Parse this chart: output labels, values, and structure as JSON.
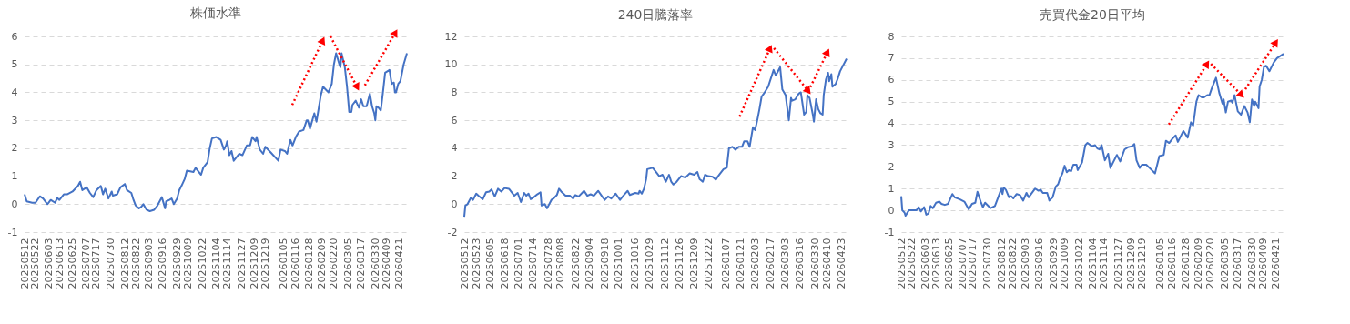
{
  "chart_data": [
    {
      "type": "line",
      "title": "株価水準",
      "grid": "y",
      "xlim": [
        "2025-05-12",
        "2026-04-28"
      ],
      "ylim": [
        -1,
        6
      ],
      "yticks": [
        -1,
        0,
        1,
        2,
        3,
        4,
        5,
        6
      ],
      "xticks": [
        {
          "value": "2025-05-12",
          "label": "20250512"
        },
        {
          "value": "2025-05-22",
          "label": "20250522"
        },
        {
          "value": "2025-06-03",
          "label": "20250603"
        },
        {
          "value": "2025-06-13",
          "label": "20250613"
        },
        {
          "value": "2025-06-25",
          "label": "20250625"
        },
        {
          "value": "2025-07-07",
          "label": "20250707"
        },
        {
          "value": "2025-07-17",
          "label": "20250717"
        },
        {
          "value": "2025-07-30",
          "label": "20250730"
        },
        {
          "value": "2025-08-12",
          "label": "20250812"
        },
        {
          "value": "2025-08-22",
          "label": "20250822"
        },
        {
          "value": "2025-09-03",
          "label": "20250903"
        },
        {
          "value": "2025-09-16",
          "label": "20250916"
        },
        {
          "value": "2025-09-29",
          "label": "20250929"
        },
        {
          "value": "2025-10-09",
          "label": "20251009"
        },
        {
          "value": "2025-10-22",
          "label": "20251022"
        },
        {
          "value": "2025-11-04",
          "label": "20251104"
        },
        {
          "value": "2025-11-14",
          "label": "20251114"
        },
        {
          "value": "2025-11-27",
          "label": "20251127"
        },
        {
          "value": "2025-12-09",
          "label": "20251209"
        },
        {
          "value": "2025-12-19",
          "label": "20251219"
        },
        {
          "value": "2026-01-05",
          "label": "20260105"
        },
        {
          "value": "2026-01-16",
          "label": "20260116"
        },
        {
          "value": "2026-01-28",
          "label": "20260128"
        },
        {
          "value": "2026-02-09",
          "label": "20260209"
        },
        {
          "value": "2026-02-20",
          "label": "20260220"
        },
        {
          "value": "2026-03-05",
          "label": "20260305"
        },
        {
          "value": "2026-03-17",
          "label": "20260317"
        },
        {
          "value": "2026-03-30",
          "label": "20260330"
        },
        {
          "value": "2026-04-09",
          "label": "20260409"
        },
        {
          "value": "2026-04-21",
          "label": "20260421"
        }
      ],
      "x": [
        "2025-05-12",
        "2025-05-14",
        "2025-05-19",
        "2025-05-22",
        "2025-05-26",
        "2025-05-29",
        "2025-06-02",
        "2025-06-05",
        "2025-06-09",
        "2025-06-11",
        "2025-06-13",
        "2025-06-17",
        "2025-06-20",
        "2025-06-25",
        "2025-06-30",
        "2025-07-02",
        "2025-07-04",
        "2025-07-08",
        "2025-07-11",
        "2025-07-14",
        "2025-07-17",
        "2025-07-21",
        "2025-07-23",
        "2025-07-25",
        "2025-07-28",
        "2025-07-31",
        "2025-08-01",
        "2025-08-05",
        "2025-08-08",
        "2025-08-12",
        "2025-08-14",
        "2025-08-18",
        "2025-08-20",
        "2025-08-22",
        "2025-08-25",
        "2025-08-27",
        "2025-08-29",
        "2025-09-01",
        "2025-09-04",
        "2025-09-08",
        "2025-09-11",
        "2025-09-15",
        "2025-09-18",
        "2025-09-19",
        "2025-09-22",
        "2025-09-24",
        "2025-09-26",
        "2025-09-29",
        "2025-10-01",
        "2025-10-03",
        "2025-10-06",
        "2025-10-08",
        "2025-10-14",
        "2025-10-16",
        "2025-10-21",
        "2025-10-23",
        "2025-10-27",
        "2025-10-29",
        "2025-10-31",
        "2025-11-04",
        "2025-11-08",
        "2025-11-11",
        "2025-11-13",
        "2025-11-14",
        "2025-11-16",
        "2025-11-18",
        "2025-11-20",
        "2025-11-25",
        "2025-11-28",
        "2025-12-02",
        "2025-12-05",
        "2025-12-07",
        "2025-12-10",
        "2025-12-11",
        "2025-12-14",
        "2025-12-17",
        "2025-12-19",
        "2025-12-24",
        "2025-12-31",
        "2026-01-02",
        "2026-01-06",
        "2026-01-08",
        "2026-01-11",
        "2026-01-13",
        "2026-01-16",
        "2026-01-19",
        "2026-01-23",
        "2026-01-26",
        "2026-01-27",
        "2026-01-29",
        "2026-02-02",
        "2026-02-04",
        "2026-02-08",
        "2026-02-10",
        "2026-02-15",
        "2026-02-18",
        "2026-02-20",
        "2026-02-22",
        "2026-02-25",
        "2026-02-26",
        "2026-02-27",
        "2026-03-02",
        "2026-03-04",
        "2026-03-06",
        "2026-03-08",
        "2026-03-09",
        "2026-03-12",
        "2026-03-15",
        "2026-03-17",
        "2026-03-19",
        "2026-03-22",
        "2026-03-25",
        "2026-03-27",
        "2026-03-29",
        "2026-03-30",
        "2026-03-31",
        "2026-04-02",
        "2026-04-04",
        "2026-04-06",
        "2026-04-08",
        "2026-04-12",
        "2026-04-14",
        "2026-04-16",
        "2026-04-17",
        "2026-04-18",
        "2026-04-20",
        "2026-04-22",
        "2026-04-25",
        "2026-04-28"
      ],
      "series": [
        {
          "color": "#4472c4",
          "values": [
            0.35,
            0.1,
            0.05,
            0.05,
            0.28,
            0.2,
            0.0,
            0.15,
            0.05,
            0.22,
            0.15,
            0.35,
            0.35,
            0.45,
            0.65,
            0.8,
            0.5,
            0.6,
            0.4,
            0.25,
            0.5,
            0.65,
            0.35,
            0.55,
            0.2,
            0.45,
            0.3,
            0.35,
            0.6,
            0.72,
            0.5,
            0.4,
            0.15,
            -0.05,
            -0.15,
            -0.1,
            0.0,
            -0.2,
            -0.25,
            -0.2,
            -0.05,
            0.25,
            -0.15,
            0.1,
            0.15,
            0.2,
            0.0,
            0.2,
            0.5,
            0.65,
            0.9,
            1.2,
            1.15,
            1.3,
            1.05,
            1.3,
            1.5,
            2.0,
            2.35,
            2.4,
            2.3,
            1.95,
            2.1,
            2.25,
            1.75,
            1.9,
            1.55,
            1.8,
            1.75,
            2.1,
            2.1,
            2.4,
            2.25,
            2.4,
            1.95,
            1.8,
            2.05,
            1.85,
            1.55,
            1.95,
            1.9,
            1.8,
            2.3,
            2.1,
            2.4,
            2.6,
            2.65,
            3.0,
            3.0,
            2.7,
            3.25,
            2.95,
            3.9,
            4.2,
            4.0,
            4.3,
            5.0,
            5.4,
            5.0,
            4.9,
            5.4,
            4.9,
            4.2,
            3.3,
            3.3,
            3.55,
            3.7,
            3.45,
            3.75,
            3.5,
            3.5,
            3.95,
            3.5,
            3.25,
            3.0,
            3.5,
            3.45,
            3.35,
            4.0,
            4.7,
            4.8,
            4.3,
            4.35,
            4.0,
            4.0,
            4.3,
            4.4,
            5.0,
            5.4
          ]
        }
      ]
    },
    {
      "type": "line",
      "title": "240日騰落率",
      "grid": "y",
      "xlim": [
        "2025-05-12",
        "2026-04-28"
      ],
      "ylim": [
        -2,
        12
      ],
      "yticks": [
        -2,
        0,
        2,
        4,
        6,
        8,
        10,
        12
      ],
      "xticks": [
        {
          "value": "2025-05-12",
          "label": "20250512"
        },
        {
          "value": "2025-05-23",
          "label": "20250523"
        },
        {
          "value": "2025-06-05",
          "label": "20250605"
        },
        {
          "value": "2025-06-18",
          "label": "20250618"
        },
        {
          "value": "2025-07-01",
          "label": "20250701"
        },
        {
          "value": "2025-07-14",
          "label": "20250714"
        },
        {
          "value": "2025-07-28",
          "label": "20250728"
        },
        {
          "value": "2025-08-08",
          "label": "20250808"
        },
        {
          "value": "2025-08-22",
          "label": "20250822"
        },
        {
          "value": "2025-09-04",
          "label": "20250904"
        },
        {
          "value": "2025-09-18",
          "label": "20250918"
        },
        {
          "value": "2025-10-01",
          "label": "20251001"
        },
        {
          "value": "2025-10-16",
          "label": "20251016"
        },
        {
          "value": "2025-10-29",
          "label": "20251029"
        },
        {
          "value": "2025-11-12",
          "label": "20251112"
        },
        {
          "value": "2025-11-26",
          "label": "20251126"
        },
        {
          "value": "2025-12-09",
          "label": "20251209"
        },
        {
          "value": "2025-12-22",
          "label": "20251222"
        },
        {
          "value": "2026-01-07",
          "label": "20260107"
        },
        {
          "value": "2026-01-21",
          "label": "20260121"
        },
        {
          "value": "2026-02-03",
          "label": "20260203"
        },
        {
          "value": "2026-02-17",
          "label": "20260217"
        },
        {
          "value": "2026-03-03",
          "label": "20260303"
        },
        {
          "value": "2026-03-16",
          "label": "20260316"
        },
        {
          "value": "2026-03-30",
          "label": "20260330"
        },
        {
          "value": "2026-04-10",
          "label": "20260410"
        },
        {
          "value": "2026-04-23",
          "label": "20260423"
        }
      ],
      "x": [
        "2025-05-12",
        "2025-05-13",
        "2025-05-15",
        "2025-05-18",
        "2025-05-20",
        "2025-05-23",
        "2025-05-25",
        "2025-05-29",
        "2025-06-01",
        "2025-06-04",
        "2025-06-06",
        "2025-06-09",
        "2025-06-12",
        "2025-06-15",
        "2025-06-18",
        "2025-06-22",
        "2025-06-27",
        "2025-06-30",
        "2025-07-03",
        "2025-07-06",
        "2025-07-08",
        "2025-07-10",
        "2025-07-12",
        "2025-07-15",
        "2025-07-18",
        "2025-07-21",
        "2025-07-22",
        "2025-07-25",
        "2025-07-27",
        "2025-07-31",
        "2025-08-02",
        "2025-08-05",
        "2025-08-07",
        "2025-08-09",
        "2025-08-13",
        "2025-08-17",
        "2025-08-20",
        "2025-08-22",
        "2025-08-25",
        "2025-08-30",
        "2025-09-02",
        "2025-09-05",
        "2025-09-08",
        "2025-09-12",
        "2025-09-16",
        "2025-09-18",
        "2025-09-21",
        "2025-09-24",
        "2025-09-28",
        "2025-10-02",
        "2025-10-05",
        "2025-10-09",
        "2025-10-11",
        "2025-10-16",
        "2025-10-19",
        "2025-10-20",
        "2025-10-22",
        "2025-10-24",
        "2025-10-26",
        "2025-10-27",
        "2025-11-01",
        "2025-11-04",
        "2025-11-07",
        "2025-11-10",
        "2025-11-13",
        "2025-11-16",
        "2025-11-18",
        "2025-11-20",
        "2025-11-23",
        "2025-11-27",
        "2025-12-01",
        "2025-12-05",
        "2025-12-09",
        "2025-12-12",
        "2025-12-14",
        "2025-12-17",
        "2025-12-19",
        "2025-12-22",
        "2025-12-26",
        "2025-12-29",
        "2025-12-31",
        "2026-01-05",
        "2026-01-08",
        "2026-01-10",
        "2026-01-13",
        "2026-01-16",
        "2026-01-19",
        "2026-01-22",
        "2026-01-24",
        "2026-01-27",
        "2026-01-29",
        "2026-02-01",
        "2026-02-03",
        "2026-02-05",
        "2026-02-07",
        "2026-02-09",
        "2026-02-11",
        "2026-02-15",
        "2026-02-20",
        "2026-02-22",
        "2026-02-26",
        "2026-02-28",
        "2026-03-03",
        "2026-03-06",
        "2026-03-08",
        "2026-03-09",
        "2026-03-12",
        "2026-03-15",
        "2026-03-17",
        "2026-03-20",
        "2026-03-22",
        "2026-03-23",
        "2026-03-25",
        "2026-03-28",
        "2026-03-29",
        "2026-03-31",
        "2026-04-02",
        "2026-04-04",
        "2026-04-06",
        "2026-04-07",
        "2026-04-09",
        "2026-04-11",
        "2026-04-12",
        "2026-04-14",
        "2026-04-15",
        "2026-04-18",
        "2026-04-20",
        "2026-04-22",
        "2026-04-28"
      ],
      "series": [
        {
          "color": "#4472c4",
          "values": [
            -0.9,
            -0.1,
            0.0,
            0.45,
            0.3,
            0.75,
            0.6,
            0.35,
            0.85,
            0.9,
            1.05,
            0.55,
            1.1,
            0.9,
            1.15,
            1.1,
            0.6,
            0.8,
            0.15,
            0.8,
            0.6,
            0.75,
            0.35,
            0.5,
            0.7,
            0.85,
            -0.1,
            0.0,
            -0.3,
            0.3,
            0.4,
            0.65,
            1.1,
            0.9,
            0.6,
            0.6,
            0.4,
            0.65,
            0.55,
            0.95,
            0.6,
            0.7,
            0.6,
            0.95,
            0.5,
            0.3,
            0.55,
            0.4,
            0.75,
            0.3,
            0.6,
            0.95,
            0.65,
            0.8,
            0.75,
            0.95,
            0.75,
            1.1,
            1.8,
            2.5,
            2.6,
            2.3,
            2.0,
            2.1,
            1.6,
            2.1,
            1.6,
            1.4,
            1.6,
            2.0,
            1.9,
            2.2,
            2.1,
            2.3,
            1.8,
            1.6,
            2.1,
            2.0,
            1.95,
            1.75,
            2.0,
            2.5,
            2.6,
            4.0,
            4.1,
            3.9,
            4.1,
            4.1,
            4.5,
            4.5,
            4.1,
            5.5,
            5.3,
            6.0,
            6.8,
            7.7,
            7.9,
            8.4,
            9.6,
            9.2,
            9.8,
            8.2,
            7.8,
            6.0,
            7.6,
            7.4,
            7.5,
            7.9,
            8.0,
            6.4,
            6.6,
            7.8,
            7.6,
            6.4,
            5.9,
            7.5,
            6.8,
            6.5,
            6.4,
            7.8,
            8.9,
            9.4,
            8.8,
            9.3,
            8.4,
            8.6,
            9.0,
            9.5,
            10.4
          ]
        }
      ]
    },
    {
      "type": "line",
      "title": "売買代金20日平均",
      "grid": "y",
      "xlim": [
        "2025-05-12",
        "2026-04-28"
      ],
      "ylim": [
        -1,
        8
      ],
      "yticks": [
        -1,
        0,
        1,
        2,
        3,
        4,
        5,
        6,
        7,
        8
      ],
      "xticks": [
        {
          "value": "2025-05-12",
          "label": "20250512"
        },
        {
          "value": "2025-05-22",
          "label": "20250522"
        },
        {
          "value": "2025-06-03",
          "label": "20250603"
        },
        {
          "value": "2025-06-13",
          "label": "20250613"
        },
        {
          "value": "2025-06-25",
          "label": "20250625"
        },
        {
          "value": "2025-07-07",
          "label": "20250707"
        },
        {
          "value": "2025-07-17",
          "label": "20250717"
        },
        {
          "value": "2025-07-30",
          "label": "20250730"
        },
        {
          "value": "2025-08-12",
          "label": "20250812"
        },
        {
          "value": "2025-08-22",
          "label": "20250822"
        },
        {
          "value": "2025-09-03",
          "label": "20250903"
        },
        {
          "value": "2025-09-16",
          "label": "20250916"
        },
        {
          "value": "2025-09-29",
          "label": "20250929"
        },
        {
          "value": "2025-10-09",
          "label": "20251009"
        },
        {
          "value": "2025-10-22",
          "label": "20251022"
        },
        {
          "value": "2025-11-04",
          "label": "20251104"
        },
        {
          "value": "2025-11-14",
          "label": "20251114"
        },
        {
          "value": "2025-11-27",
          "label": "20251127"
        },
        {
          "value": "2025-12-09",
          "label": "20251209"
        },
        {
          "value": "2025-12-19",
          "label": "20251219"
        },
        {
          "value": "2026-01-05",
          "label": "20260105"
        },
        {
          "value": "2026-01-16",
          "label": "20260116"
        },
        {
          "value": "2026-01-28",
          "label": "20260128"
        },
        {
          "value": "2026-02-09",
          "label": "20260209"
        },
        {
          "value": "2026-02-20",
          "label": "20260220"
        },
        {
          "value": "2026-03-05",
          "label": "20260305"
        },
        {
          "value": "2026-03-17",
          "label": "20260317"
        },
        {
          "value": "2026-03-30",
          "label": "20260330"
        },
        {
          "value": "2026-04-09",
          "label": "20260409"
        },
        {
          "value": "2026-04-21",
          "label": "20260421"
        }
      ],
      "x": [
        "2025-05-12",
        "2025-05-13",
        "2025-05-15",
        "2025-05-16",
        "2025-05-19",
        "2025-05-22",
        "2025-05-26",
        "2025-05-28",
        "2025-05-30",
        "2025-06-02",
        "2025-06-04",
        "2025-06-06",
        "2025-06-08",
        "2025-06-10",
        "2025-06-13",
        "2025-06-16",
        "2025-06-18",
        "2025-06-21",
        "2025-06-24",
        "2025-06-28",
        "2025-06-30",
        "2025-07-05",
        "2025-07-09",
        "2025-07-13",
        "2025-07-16",
        "2025-07-19",
        "2025-07-21",
        "2025-07-24",
        "2025-07-26",
        "2025-07-28",
        "2025-08-02",
        "2025-08-06",
        "2025-08-09",
        "2025-08-12",
        "2025-08-13",
        "2025-08-14",
        "2025-08-16",
        "2025-08-19",
        "2025-08-21",
        "2025-08-23",
        "2025-08-26",
        "2025-08-29",
        "2025-09-01",
        "2025-09-04",
        "2025-09-06",
        "2025-09-12",
        "2025-09-15",
        "2025-09-17",
        "2025-09-19",
        "2025-09-23",
        "2025-09-25",
        "2025-09-28",
        "2025-10-01",
        "2025-10-03",
        "2025-10-05",
        "2025-10-07",
        "2025-10-09",
        "2025-10-11",
        "2025-10-13",
        "2025-10-15",
        "2025-10-17",
        "2025-10-20",
        "2025-10-21",
        "2025-10-25",
        "2025-10-28",
        "2025-10-30",
        "2025-11-03",
        "2025-11-06",
        "2025-11-08",
        "2025-11-10",
        "2025-11-12",
        "2025-11-15",
        "2025-11-18",
        "2025-11-20",
        "2025-11-23",
        "2025-11-26",
        "2025-11-29",
        "2025-12-03",
        "2025-12-06",
        "2025-12-10",
        "2025-12-12",
        "2025-12-14",
        "2025-12-17",
        "2025-12-19",
        "2025-12-23",
        "2025-12-28",
        "2025-12-31",
        "2026-01-04",
        "2026-01-08",
        "2026-01-10",
        "2026-01-13",
        "2026-01-16",
        "2026-01-19",
        "2026-01-21",
        "2026-01-26",
        "2026-01-30",
        "2026-02-02",
        "2026-02-04",
        "2026-02-07",
        "2026-02-09",
        "2026-02-12",
        "2026-02-14",
        "2026-02-17",
        "2026-02-19",
        "2026-02-21",
        "2026-02-25",
        "2026-02-28",
        "2026-03-03",
        "2026-03-04",
        "2026-03-06",
        "2026-03-08",
        "2026-03-11",
        "2026-03-12",
        "2026-03-14",
        "2026-03-17",
        "2026-03-20",
        "2026-03-23",
        "2026-03-26",
        "2026-03-28",
        "2026-03-30",
        "2026-04-01",
        "2026-04-02",
        "2026-04-05",
        "2026-04-06",
        "2026-04-08",
        "2026-04-10",
        "2026-04-12",
        "2026-04-15",
        "2026-04-19",
        "2026-04-22",
        "2026-04-28"
      ],
      "series": [
        {
          "color": "#4472c4",
          "values": [
            0.65,
            0.0,
            -0.1,
            -0.25,
            0.0,
            0.0,
            0.0,
            0.15,
            -0.05,
            0.15,
            -0.2,
            -0.15,
            0.2,
            0.1,
            0.35,
            0.4,
            0.3,
            0.25,
            0.3,
            0.75,
            0.6,
            0.5,
            0.4,
            0.05,
            0.3,
            0.35,
            0.85,
            0.4,
            0.15,
            0.35,
            0.1,
            0.2,
            0.6,
            1.0,
            0.75,
            1.05,
            0.95,
            0.6,
            0.65,
            0.55,
            0.75,
            0.7,
            0.45,
            0.8,
            0.6,
            1.0,
            0.9,
            0.95,
            0.8,
            0.8,
            0.45,
            0.6,
            1.1,
            1.2,
            1.5,
            1.7,
            2.05,
            1.75,
            1.85,
            1.8,
            2.1,
            2.1,
            1.85,
            2.2,
            3.0,
            3.1,
            2.95,
            3.0,
            2.85,
            2.8,
            3.0,
            2.3,
            2.6,
            1.95,
            2.25,
            2.55,
            2.25,
            2.8,
            2.9,
            2.95,
            3.05,
            2.3,
            1.95,
            2.1,
            2.1,
            1.85,
            1.7,
            2.5,
            2.55,
            3.2,
            3.1,
            3.3,
            3.45,
            3.15,
            3.65,
            3.35,
            4.05,
            3.9,
            5.0,
            5.3,
            5.2,
            5.2,
            5.3,
            5.3,
            5.6,
            6.1,
            5.4,
            4.9,
            5.1,
            4.5,
            5.0,
            5.05,
            4.95,
            5.3,
            4.55,
            4.4,
            4.8,
            4.5,
            4.05,
            5.1,
            4.8,
            5.0,
            4.7,
            5.7,
            6.0,
            6.6,
            6.65,
            6.4,
            6.8,
            7.0,
            7.2
          ]
        }
      ]
    }
  ]
}
